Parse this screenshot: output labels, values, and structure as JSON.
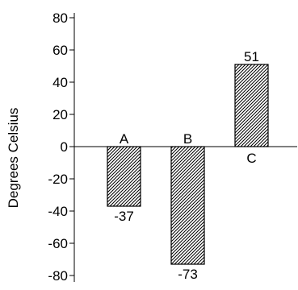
{
  "chart_data": {
    "type": "bar",
    "ylabel": "Degrees Celsius",
    "xlabel": "",
    "title": "",
    "ylim": [
      -80,
      80
    ],
    "yticks": [
      80,
      60,
      40,
      20,
      0,
      -20,
      -40,
      -60,
      -80
    ],
    "categories": [
      "A",
      "B",
      "C"
    ],
    "values": [
      -37,
      -73,
      51
    ],
    "value_labels": [
      "-37",
      "-73",
      "51"
    ],
    "bar_fill": "hatched diagonal",
    "colors": {
      "bar_stroke": "#000000",
      "hatch": "#000000",
      "background": "#ffffff"
    },
    "grid": false,
    "legend": "none"
  }
}
